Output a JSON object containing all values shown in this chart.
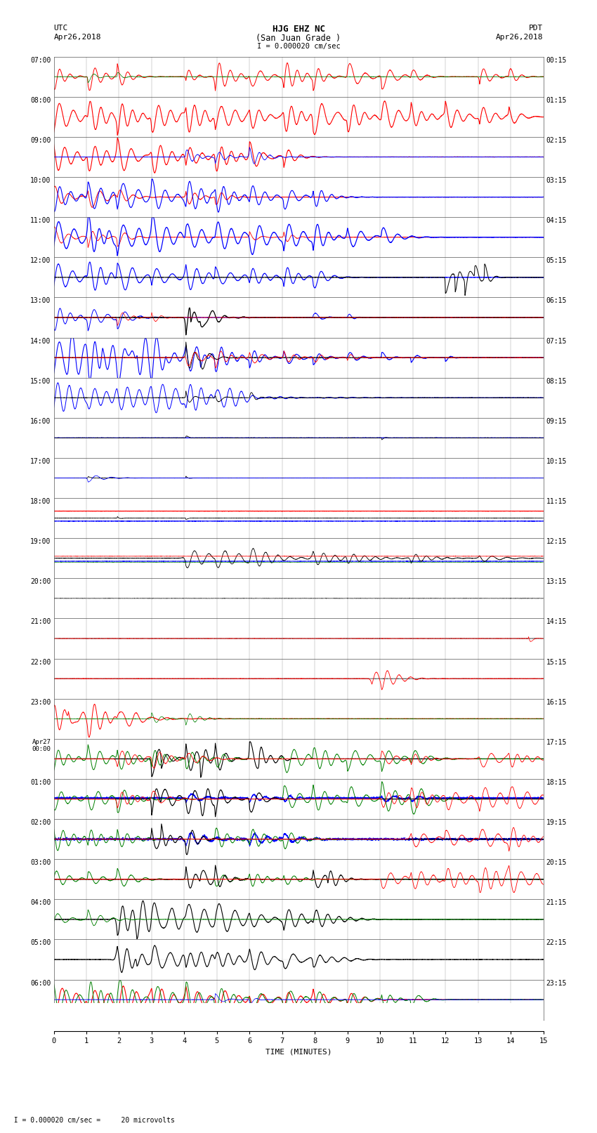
{
  "title_line1": "HJG EHZ NC",
  "title_line2": "(San Juan Grade )",
  "scale_text": "I = 0.000020 cm/sec",
  "left_label": "UTC",
  "left_date": "Apr26,2018",
  "right_label": "PDT",
  "right_date": "Apr26,2018",
  "bottom_xlabel": "TIME (MINUTES)",
  "bottom_note": "  I = 0.000020 cm/sec =     20 microvolts",
  "left_utc_times": [
    "07:00",
    "08:00",
    "09:00",
    "10:00",
    "11:00",
    "12:00",
    "13:00",
    "14:00",
    "15:00",
    "16:00",
    "17:00",
    "18:00",
    "19:00",
    "20:00",
    "21:00",
    "22:00",
    "23:00",
    "Apr27\n00:00",
    "01:00",
    "02:00",
    "03:00",
    "04:00",
    "05:00",
    "06:00"
  ],
  "right_pdt_times": [
    "00:15",
    "01:15",
    "02:15",
    "03:15",
    "04:15",
    "05:15",
    "06:15",
    "07:15",
    "08:15",
    "09:15",
    "10:15",
    "11:15",
    "12:15",
    "13:15",
    "14:15",
    "15:15",
    "16:15",
    "17:15",
    "18:15",
    "19:15",
    "20:15",
    "21:15",
    "22:15",
    "23:15"
  ],
  "n_rows": 24,
  "n_minutes": 15
}
